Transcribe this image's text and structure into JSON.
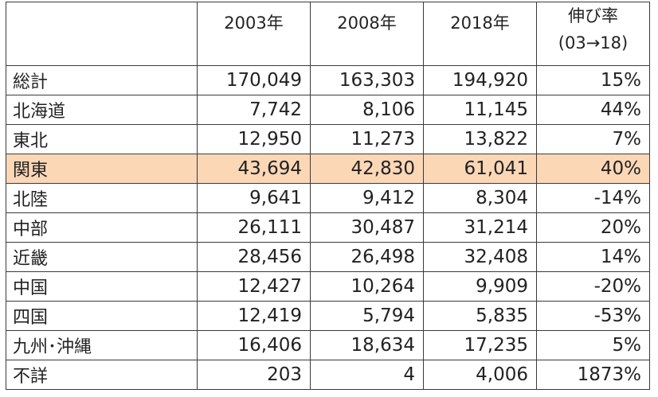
{
  "headers": {
    "region": "",
    "y2003": "2003年",
    "y2008": "2008年",
    "y2018": "2018年",
    "rate_line1": "伸び率",
    "rate_line2": "(03→18)"
  },
  "highlight_color": "#fbd7b6",
  "rows": [
    {
      "name": "総計",
      "y2003": "170,049",
      "y2008": "163,303",
      "y2018": "194,920",
      "rate": "15%"
    },
    {
      "name": "北海道",
      "y2003": "7,742",
      "y2008": "8,106",
      "y2018": "11,145",
      "rate": "44%"
    },
    {
      "name": "東北",
      "y2003": "12,950",
      "y2008": "11,273",
      "y2018": "13,822",
      "rate": "7%"
    },
    {
      "name": "関東",
      "y2003": "43,694",
      "y2008": "42,830",
      "y2018": "61,041",
      "rate": "40%"
    },
    {
      "name": "北陸",
      "y2003": "9,641",
      "y2008": "9,412",
      "y2018": "8,304",
      "rate": "-14%"
    },
    {
      "name": "中部",
      "y2003": "26,111",
      "y2008": "30,487",
      "y2018": "31,214",
      "rate": "20%"
    },
    {
      "name": "近畿",
      "y2003": "28,456",
      "y2008": "26,498",
      "y2018": "32,408",
      "rate": "14%"
    },
    {
      "name": "中国",
      "y2003": "12,427",
      "y2008": "10,264",
      "y2018": "9,909",
      "rate": "-20%"
    },
    {
      "name": "四国",
      "y2003": "12,419",
      "y2008": "5,794",
      "y2018": "5,835",
      "rate": "-53%"
    },
    {
      "name": "九州･沖縄",
      "y2003": "16,406",
      "y2008": "18,634",
      "y2018": "17,235",
      "rate": "5%"
    },
    {
      "name": "不詳",
      "y2003": "203",
      "y2008": "4",
      "y2018": "4,006",
      "rate": "1873%"
    }
  ]
}
